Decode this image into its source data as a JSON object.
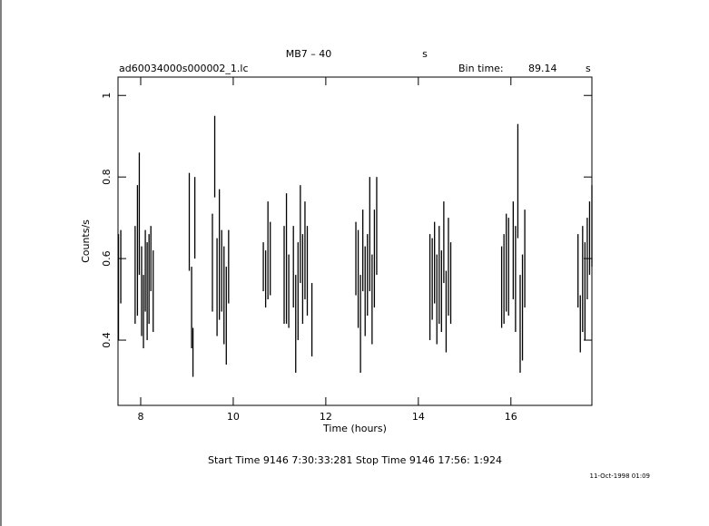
{
  "chart_data": {
    "type": "errorbar",
    "title": "MB7  –  40",
    "title_unit": "s",
    "file": "ad60034000s000002_1.lc",
    "bin_time_label": "Bin time:",
    "bin_time": "89.14",
    "bin_time_unit": "s",
    "x_label": "Time (hours)",
    "y_label": "Counts/s",
    "times": "Start Time  9146  7:30:33:281     Stop Time  9146 17:56: 1:924",
    "date": "11-Oct-1998 01:09",
    "color": "#000000",
    "xlim": [
      7.51,
      17.75
    ],
    "ylim": [
      0.24,
      1.045
    ],
    "xticks": [
      8,
      10,
      12,
      14,
      16
    ],
    "yticks": [
      0.4,
      0.6,
      0.8,
      1
    ],
    "x": [
      7.52,
      7.57,
      7.88,
      7.93,
      7.97,
      8.02,
      8.06,
      8.1,
      8.14,
      8.18,
      8.22,
      8.27,
      9.05,
      9.1,
      9.13,
      9.17,
      9.55,
      9.6,
      9.65,
      9.7,
      9.75,
      9.8,
      9.85,
      9.9,
      10.65,
      10.7,
      10.75,
      10.8,
      11.1,
      11.15,
      11.2,
      11.3,
      11.35,
      11.4,
      11.45,
      11.5,
      11.55,
      11.6,
      11.7,
      12.65,
      12.7,
      12.75,
      12.8,
      12.85,
      12.9,
      12.95,
      13.0,
      13.05,
      13.1,
      14.25,
      14.3,
      14.35,
      14.4,
      14.45,
      14.5,
      14.55,
      14.6,
      14.65,
      14.7,
      15.8,
      15.85,
      15.9,
      15.95,
      16.05,
      16.1,
      16.15,
      16.2,
      16.25,
      16.3,
      17.45,
      17.5,
      17.55,
      17.6,
      17.65,
      17.7,
      17.75
    ],
    "values": [
      0.53,
      0.58,
      0.56,
      0.62,
      0.71,
      0.52,
      0.47,
      0.57,
      0.52,
      0.55,
      0.6,
      0.52,
      0.69,
      0.48,
      0.37,
      0.7,
      0.59,
      0.85,
      0.53,
      0.61,
      0.57,
      0.51,
      0.46,
      0.58,
      0.58,
      0.55,
      0.62,
      0.6,
      0.56,
      0.6,
      0.52,
      0.58,
      0.44,
      0.52,
      0.66,
      0.55,
      0.62,
      0.57,
      0.45,
      0.6,
      0.55,
      0.44,
      0.62,
      0.52,
      0.56,
      0.66,
      0.5,
      0.6,
      0.68,
      0.53,
      0.55,
      0.59,
      0.5,
      0.56,
      0.52,
      0.64,
      0.47,
      0.58,
      0.54,
      0.53,
      0.55,
      0.59,
      0.58,
      0.62,
      0.55,
      0.79,
      0.44,
      0.48,
      0.6,
      0.57,
      0.44,
      0.55,
      0.52,
      0.6,
      0.65,
      0.68
    ],
    "errors": [
      0.13,
      0.09,
      0.12,
      0.16,
      0.15,
      0.11,
      0.09,
      0.1,
      0.12,
      0.11,
      0.08,
      0.1,
      0.12,
      0.1,
      0.06,
      0.1,
      0.12,
      0.1,
      0.12,
      0.16,
      0.1,
      0.12,
      0.12,
      0.09,
      0.06,
      0.07,
      0.12,
      0.09,
      0.12,
      0.16,
      0.09,
      0.1,
      0.12,
      0.12,
      0.12,
      0.11,
      0.12,
      0.11,
      0.09,
      0.09,
      0.12,
      0.12,
      0.1,
      0.11,
      0.1,
      0.14,
      0.11,
      0.12,
      0.12,
      0.13,
      0.1,
      0.1,
      0.11,
      0.12,
      0.1,
      0.1,
      0.1,
      0.12,
      0.1,
      0.1,
      0.11,
      0.12,
      0.12,
      0.12,
      0.13,
      0.14,
      0.12,
      0.13,
      0.12,
      0.09,
      0.07,
      0.13,
      0.12,
      0.1,
      0.09,
      0.1
    ]
  }
}
